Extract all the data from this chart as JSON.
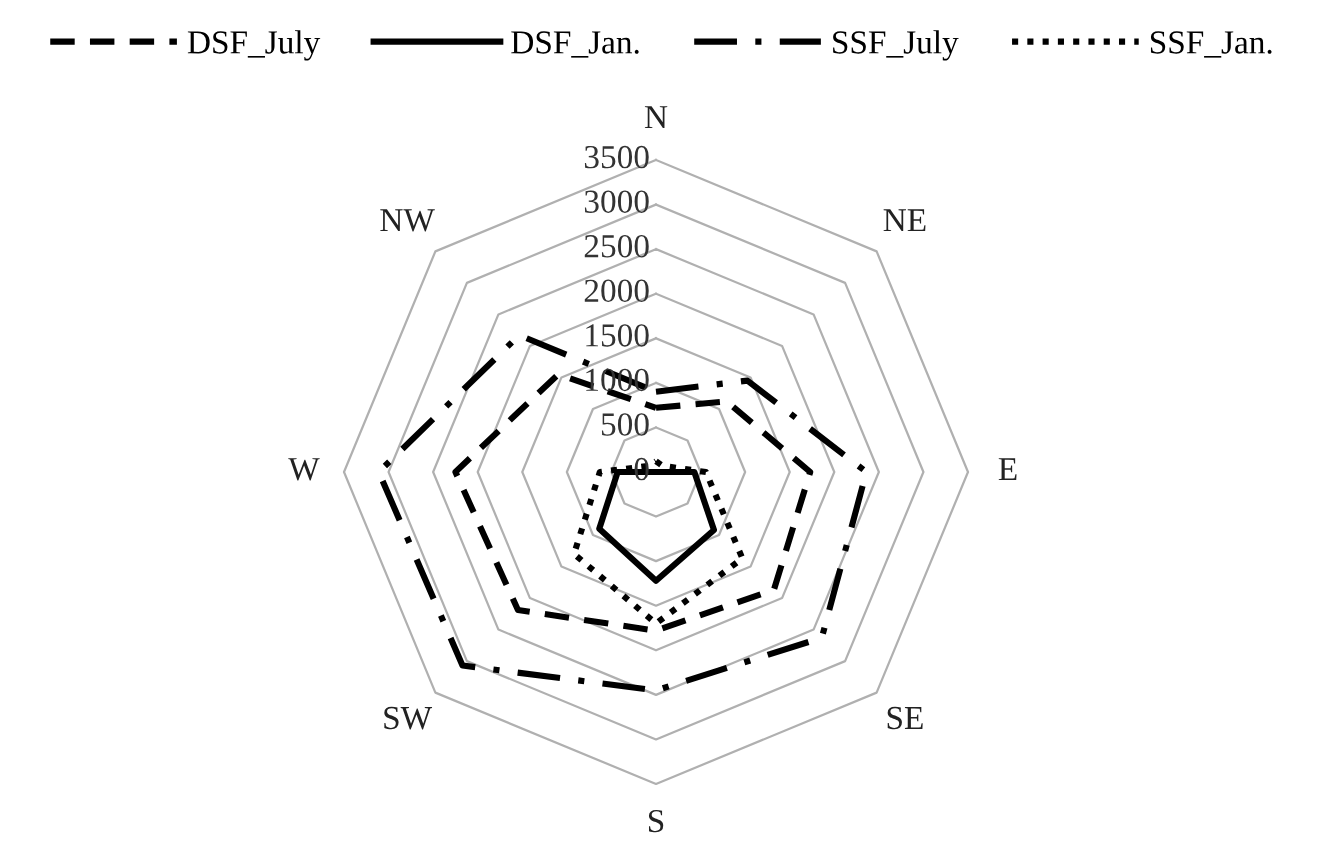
{
  "chart_data": {
    "type": "radar",
    "categories": [
      "N",
      "NE",
      "E",
      "SE",
      "S",
      "SW",
      "W",
      "NW"
    ],
    "ylim": [
      0,
      3500
    ],
    "yticks": [
      0,
      500,
      1000,
      1500,
      2000,
      2500,
      3000,
      3500
    ],
    "grid": true,
    "legend": "top",
    "series": [
      {
        "name": "DSF_July",
        "color": "#000000",
        "line_style": "dashed",
        "values": [
          720,
          1120,
          1730,
          1870,
          1780,
          2190,
          2250,
          1550
        ]
      },
      {
        "name": "DSF_Jan.",
        "color": "#000000",
        "line_style": "solid",
        "values": [
          0,
          0,
          430,
          920,
          1220,
          900,
          430,
          0
        ]
      },
      {
        "name": "SSF_July",
        "color": "#000000",
        "line_style": "dashdot",
        "values": [
          900,
          1450,
          2360,
          2630,
          2450,
          3070,
          3110,
          2170
        ]
      },
      {
        "name": "SSF_Jan.",
        "color": "#000000",
        "line_style": "dotted",
        "values": [
          120,
          100,
          560,
          1370,
          1700,
          1300,
          630,
          100
        ]
      }
    ]
  }
}
